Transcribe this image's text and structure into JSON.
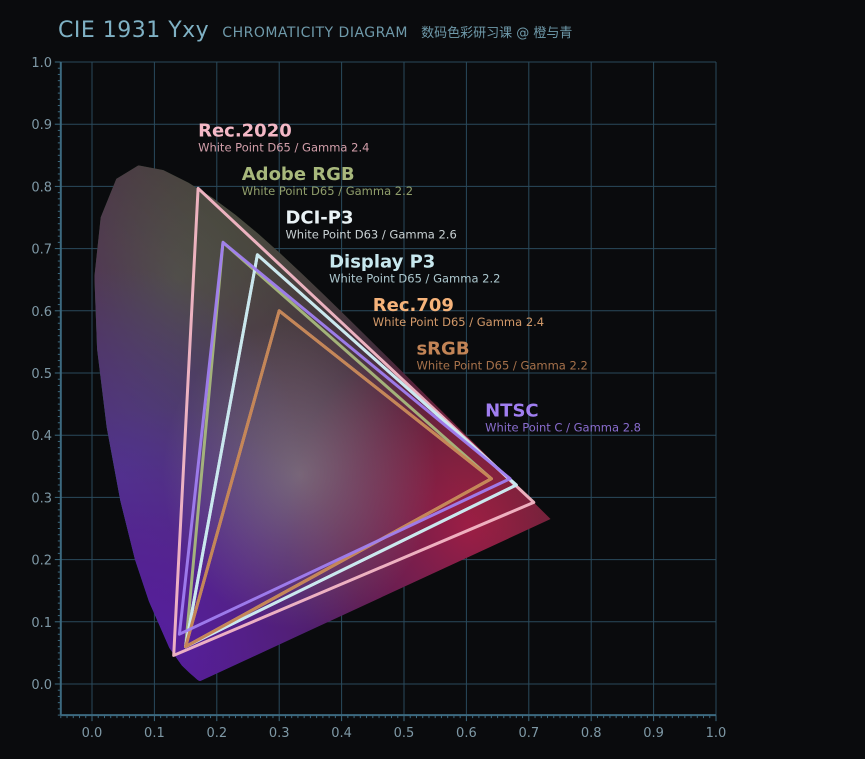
{
  "header": {
    "title": "CIE 1931 Yxy",
    "subtitle": "CHROMATICITY DIAGRAM",
    "credit": "数码色彩研习课 @ 橙与青"
  },
  "chart_data": {
    "type": "scatter",
    "title": "CIE 1931 Yxy",
    "subtitle": "CHROMATICITY DIAGRAM",
    "xlim": [
      0,
      1.0
    ],
    "ylim": [
      0,
      1.0
    ],
    "grid": true,
    "x_ticks": [
      "0.0",
      "0.1",
      "0.2",
      "0.3",
      "0.4",
      "0.5",
      "0.6",
      "0.7",
      "0.8",
      "0.9",
      "1.0"
    ],
    "y_ticks": [
      "0.0",
      "0.1",
      "0.2",
      "0.3",
      "0.4",
      "0.5",
      "0.6",
      "0.7",
      "0.8",
      "0.9",
      "1.0"
    ],
    "locus": [
      [
        0.1741,
        0.005
      ],
      [
        0.173,
        0.0049
      ],
      [
        0.1714,
        0.0051
      ],
      [
        0.1689,
        0.0069
      ],
      [
        0.1644,
        0.0109
      ],
      [
        0.1566,
        0.0177
      ],
      [
        0.144,
        0.0297
      ],
      [
        0.1241,
        0.0578
      ],
      [
        0.0913,
        0.1327
      ],
      [
        0.0687,
        0.2007
      ],
      [
        0.0454,
        0.295
      ],
      [
        0.0235,
        0.4127
      ],
      [
        0.0082,
        0.5384
      ],
      [
        0.0039,
        0.6548
      ],
      [
        0.0139,
        0.7502
      ],
      [
        0.0389,
        0.812
      ],
      [
        0.0743,
        0.8338
      ],
      [
        0.1142,
        0.8262
      ],
      [
        0.1547,
        0.8059
      ],
      [
        0.1929,
        0.7816
      ],
      [
        0.2296,
        0.7543
      ],
      [
        0.2658,
        0.7243
      ],
      [
        0.3016,
        0.6923
      ],
      [
        0.3373,
        0.6589
      ],
      [
        0.3731,
        0.6245
      ],
      [
        0.4087,
        0.5896
      ],
      [
        0.4441,
        0.5547
      ],
      [
        0.4788,
        0.5202
      ],
      [
        0.5125,
        0.4866
      ],
      [
        0.5448,
        0.4544
      ],
      [
        0.5752,
        0.4242
      ],
      [
        0.6029,
        0.3965
      ],
      [
        0.627,
        0.3725
      ],
      [
        0.6482,
        0.3514
      ],
      [
        0.6658,
        0.334
      ],
      [
        0.6915,
        0.3083
      ],
      [
        0.7079,
        0.292
      ],
      [
        0.7347,
        0.2653
      ]
    ],
    "series": [
      {
        "name": "Rec.2020",
        "note": "White Point D65 / Gamma 2.4",
        "color": "#f4b8c6",
        "primaries": [
          [
            0.708,
            0.292
          ],
          [
            0.17,
            0.797
          ],
          [
            0.131,
            0.046
          ]
        ],
        "label_at": [
          0.17,
          0.88
        ]
      },
      {
        "name": "Adobe RGB",
        "note": "White Point D65 / Gamma 2.2",
        "color": "#a8b87c",
        "primaries": [
          [
            0.64,
            0.33
          ],
          [
            0.21,
            0.71
          ],
          [
            0.15,
            0.06
          ]
        ],
        "label_at": [
          0.24,
          0.81
        ]
      },
      {
        "name": "DCI-P3",
        "note": "White Point D63 / Gamma 2.6",
        "color": "#e9f2f5",
        "primaries": [
          [
            0.68,
            0.32
          ],
          [
            0.265,
            0.69
          ],
          [
            0.15,
            0.06
          ]
        ],
        "label_at": [
          0.31,
          0.74
        ]
      },
      {
        "name": "Display P3",
        "note": "White Point D65 / Gamma 2.2",
        "color": "#c8e8ee",
        "primaries": [
          [
            0.68,
            0.32
          ],
          [
            0.265,
            0.69
          ],
          [
            0.15,
            0.06
          ]
        ],
        "label_at": [
          0.38,
          0.67
        ]
      },
      {
        "name": "Rec.709",
        "note": "White Point D65 / Gamma 2.4",
        "color": "#f6b37a",
        "primaries": [
          [
            0.64,
            0.33
          ],
          [
            0.3,
            0.6
          ],
          [
            0.15,
            0.06
          ]
        ],
        "label_at": [
          0.45,
          0.6
        ]
      },
      {
        "name": "sRGB",
        "note": "White Point D65 / Gamma 2.2",
        "color": "#c28456",
        "primaries": [
          [
            0.64,
            0.33
          ],
          [
            0.3,
            0.6
          ],
          [
            0.15,
            0.06
          ]
        ],
        "label_at": [
          0.52,
          0.53
        ]
      },
      {
        "name": "NTSC",
        "note": "White Point C / Gamma 2.8",
        "color": "#a07ef0",
        "primaries": [
          [
            0.67,
            0.33
          ],
          [
            0.21,
            0.71
          ],
          [
            0.14,
            0.08
          ]
        ],
        "label_at": [
          0.63,
          0.43
        ]
      }
    ],
    "colors": {
      "background": "#0a0b0d",
      "grid": "#2a4a5c",
      "axis": "#3c6a80",
      "tick_label": "#7e98a5"
    }
  }
}
